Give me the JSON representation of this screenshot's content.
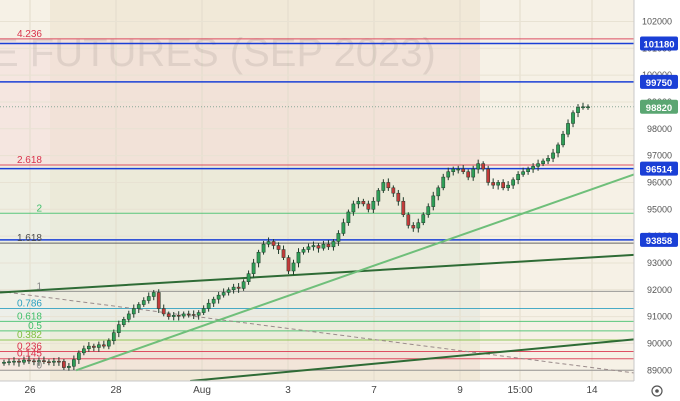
{
  "chart_data": {
    "type": "candlestick",
    "watermark": "E FUTURES (SEP 2023)",
    "ylim": [
      88600,
      102800
    ],
    "price_ticks": [
      89000,
      90000,
      91000,
      92000,
      93000,
      94000,
      95000,
      96000,
      97000,
      98000,
      99000,
      100000,
      101000,
      102000
    ],
    "date_labels": [
      "26",
      "28",
      "Aug",
      "3",
      "7",
      "9",
      "15:00",
      "14"
    ],
    "price_badges": [
      {
        "label": "101180",
        "value": 101180,
        "color": "#1a3fd6"
      },
      {
        "label": "99750",
        "value": 99750,
        "color": "#1a3fd6"
      },
      {
        "label": "98820",
        "value": 98820,
        "color": "#5aa672"
      },
      {
        "label": "96514",
        "value": 96514,
        "color": "#1a3fd6"
      },
      {
        "label": "93858",
        "value": 93858,
        "color": "#1a3fd6"
      }
    ],
    "fib_levels": [
      {
        "label": "4.236",
        "value": 101350,
        "color": "#d9334c"
      },
      {
        "label": "2.618",
        "value": 96650,
        "color": "#d9334c"
      },
      {
        "label": "2",
        "value": 94850,
        "color": "#3fbf6a"
      },
      {
        "label": "1.618",
        "value": 93740,
        "color": "#4d4d4d"
      },
      {
        "label": "1",
        "value": 91940,
        "color": "#888888"
      },
      {
        "label": "0.786",
        "value": 91300,
        "color": "#2a9fbf"
      },
      {
        "label": "0.618",
        "value": 90820,
        "color": "#3fbf6a"
      },
      {
        "label": "0.5",
        "value": 90470,
        "color": "#3fbf6a"
      },
      {
        "label": "0.382",
        "value": 90130,
        "color": "#7fbf3f"
      },
      {
        "label": "0.236",
        "value": 89700,
        "color": "#d9334c"
      },
      {
        "label": "0.145",
        "value": 89430,
        "color": "#d9334c"
      },
      {
        "label": "0",
        "value": 89000,
        "color": "#888888"
      }
    ],
    "horizontal_lines": [
      {
        "value": 101180,
        "color": "#1a3fd6"
      },
      {
        "value": 99750,
        "color": "#1a3fd6"
      },
      {
        "value": 96514,
        "color": "#1a3fd6"
      },
      {
        "value": 93858,
        "color": "#1a3fd6"
      }
    ],
    "trendlines": [
      {
        "from": [
          0,
          91900
        ],
        "to": [
          1,
          93300
        ],
        "color": "#2e6b35"
      },
      {
        "from": [
          0.12,
          89000
        ],
        "to": [
          1,
          96300
        ],
        "color": "#6fbf7a"
      },
      {
        "from": [
          0.3,
          88600
        ],
        "to": [
          1,
          90150
        ],
        "color": "#2e6b35"
      }
    ],
    "prices": [
      89300,
      89320,
      89340,
      89300,
      89380,
      89350,
      89330,
      89360,
      89320,
      89300,
      89340,
      89330,
      89100,
      89150,
      89400,
      89650,
      89800,
      89900,
      89850,
      89950,
      89900,
      90100,
      90400,
      90700,
      90900,
      91100,
      91300,
      91450,
      91600,
      91750,
      91900,
      91300,
      91100,
      91000,
      91050,
      91020,
      91100,
      91080,
      91050,
      91150,
      91300,
      91500,
      91650,
      91800,
      91900,
      92000,
      92100,
      92050,
      92300,
      92600,
      93000,
      93400,
      93700,
      93800,
      93650,
      93500,
      93200,
      92700,
      93000,
      93400,
      93500,
      93600,
      93650,
      93550,
      93700,
      93600,
      93800,
      94100,
      94500,
      94900,
      95200,
      95300,
      95200,
      95000,
      95300,
      95700,
      96000,
      95800,
      95600,
      95300,
      94800,
      94400,
      94300,
      94500,
      94800,
      95100,
      95500,
      95800,
      96200,
      96400,
      96500,
      96500,
      96400,
      96200,
      96500,
      96700,
      96500,
      96000,
      95900,
      96000,
      95800,
      95900,
      96100,
      96300,
      96400,
      96500,
      96600,
      96700,
      96800,
      96900,
      97100,
      97400,
      97800,
      98200,
      98600,
      98800,
      98820,
      98820
    ]
  }
}
